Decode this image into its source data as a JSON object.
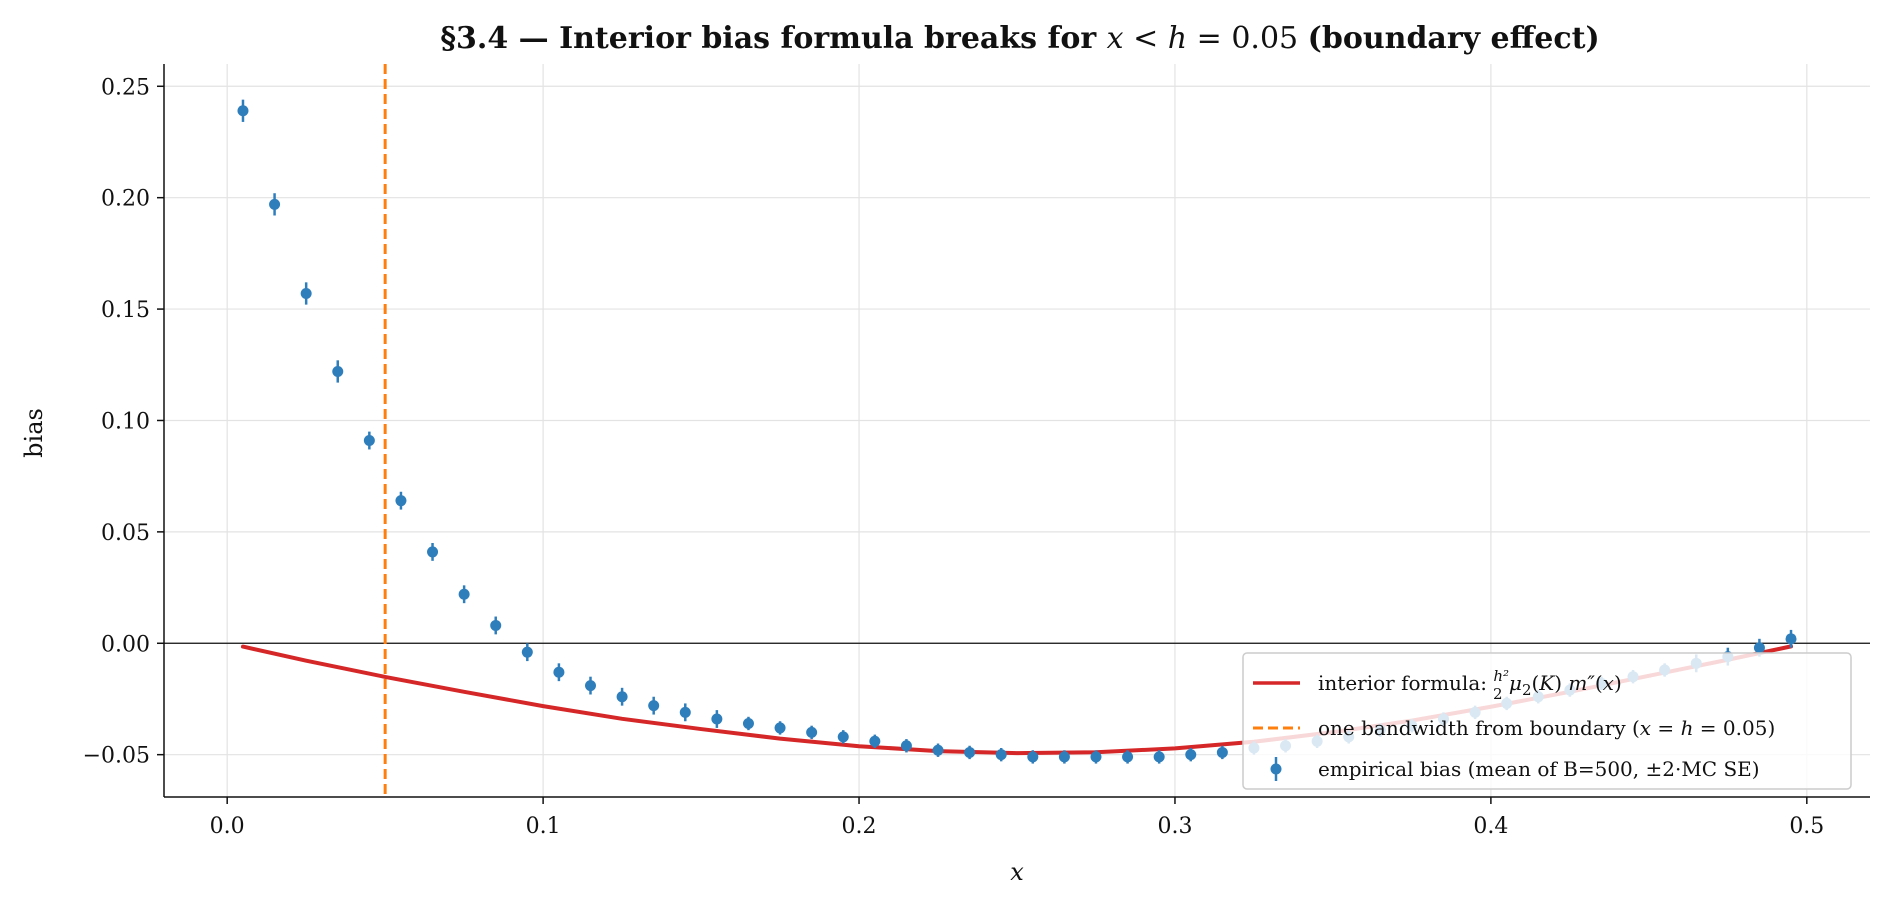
{
  "chart_data": {
    "type": "scatter",
    "title": "§3.4 — Interior bias formula breaks for x < h = 0.05  (boundary effect)",
    "xlabel": "x",
    "ylabel": "bias",
    "xlim": [
      -0.02,
      0.52
    ],
    "ylim": [
      -0.069,
      0.26
    ],
    "x_ticks": [
      0.0,
      0.1,
      0.2,
      0.3,
      0.4,
      0.5
    ],
    "x_tick_labels": [
      "0.0",
      "0.1",
      "0.2",
      "0.3",
      "0.4",
      "0.5"
    ],
    "y_ticks": [
      -0.05,
      0.0,
      0.05,
      0.1,
      0.15,
      0.2,
      0.25
    ],
    "y_tick_labels": [
      "−0.05",
      "0.00",
      "0.05",
      "0.10",
      "0.15",
      "0.20",
      "0.25"
    ],
    "grid": true,
    "legend_position": "bottom-right",
    "zero_line": 0.0,
    "bandwidth_line": {
      "x": 0.05,
      "color": "#ff7f0e",
      "label": "one bandwidth from boundary (x = h = 0.05)"
    },
    "formula_series": {
      "label": "interior formula:  h²/2 μ₂(K) m″(x)",
      "color": "#d62728",
      "x": [
        0.005,
        0.025,
        0.05,
        0.075,
        0.1,
        0.125,
        0.15,
        0.175,
        0.2,
        0.225,
        0.25,
        0.275,
        0.3,
        0.325,
        0.35,
        0.375,
        0.4,
        0.425,
        0.45,
        0.475,
        0.495
      ],
      "y": [
        -0.0015,
        -0.0078,
        -0.0151,
        -0.0218,
        -0.0282,
        -0.0339,
        -0.0385,
        -0.0428,
        -0.0462,
        -0.0484,
        -0.0493,
        -0.0489,
        -0.0472,
        -0.0442,
        -0.0399,
        -0.0347,
        -0.0285,
        -0.0218,
        -0.0146,
        -0.0074,
        -0.0014
      ]
    },
    "empirical_series": {
      "label": "empirical bias (mean of B=500, ±2·MC SE)",
      "color": "#2f7ebc",
      "x": [
        0.005,
        0.015,
        0.025,
        0.035,
        0.045,
        0.055,
        0.065,
        0.075,
        0.085,
        0.095,
        0.105,
        0.115,
        0.125,
        0.135,
        0.145,
        0.155,
        0.165,
        0.175,
        0.185,
        0.195,
        0.205,
        0.215,
        0.225,
        0.235,
        0.245,
        0.255,
        0.265,
        0.275,
        0.285,
        0.295,
        0.305,
        0.315,
        0.325,
        0.335,
        0.345,
        0.355,
        0.365,
        0.375,
        0.385,
        0.395,
        0.405,
        0.415,
        0.425,
        0.435,
        0.445,
        0.455,
        0.465,
        0.475,
        0.485,
        0.495
      ],
      "y": [
        0.239,
        0.197,
        0.157,
        0.122,
        0.091,
        0.064,
        0.041,
        0.022,
        0.008,
        -0.004,
        -0.013,
        -0.019,
        -0.024,
        -0.028,
        -0.031,
        -0.034,
        -0.036,
        -0.038,
        -0.04,
        -0.042,
        -0.044,
        -0.046,
        -0.048,
        -0.049,
        -0.05,
        -0.051,
        -0.051,
        -0.051,
        -0.051,
        -0.051,
        -0.05,
        -0.049,
        -0.047,
        -0.046,
        -0.044,
        -0.042,
        -0.039,
        -0.037,
        -0.034,
        -0.031,
        -0.027,
        -0.024,
        -0.021,
        -0.018,
        -0.015,
        -0.012,
        -0.009,
        -0.006,
        -0.002,
        0.002
      ],
      "err": [
        0.005,
        0.005,
        0.005,
        0.005,
        0.004,
        0.004,
        0.004,
        0.004,
        0.004,
        0.004,
        0.004,
        0.004,
        0.004,
        0.004,
        0.004,
        0.004,
        0.003,
        0.003,
        0.003,
        0.003,
        0.003,
        0.003,
        0.003,
        0.003,
        0.003,
        0.003,
        0.003,
        0.003,
        0.003,
        0.003,
        0.003,
        0.003,
        0.003,
        0.003,
        0.003,
        0.003,
        0.003,
        0.003,
        0.003,
        0.003,
        0.003,
        0.003,
        0.003,
        0.003,
        0.003,
        0.003,
        0.004,
        0.004,
        0.004,
        0.004
      ]
    }
  }
}
